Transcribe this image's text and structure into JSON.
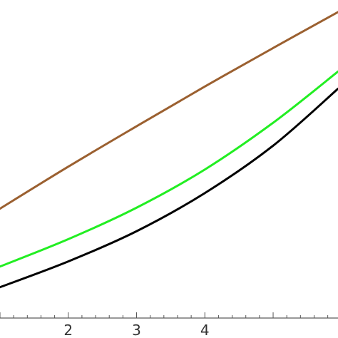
{
  "chart_data": {
    "type": "line",
    "title": "",
    "xlabel": "",
    "ylabel": "",
    "xlim": [
      1.0,
      5.95
    ],
    "ylim": [
      0,
      1
    ],
    "grid": false,
    "x_ticks": [
      2,
      3,
      4
    ],
    "x_tick_labels": [
      "2",
      "3",
      "4"
    ],
    "series": [
      {
        "color": "#9B6030",
        "x": [
          1.0,
          2.0,
          3.0,
          4.0,
          5.0,
          5.95
        ],
        "y": [
          0.344,
          0.476,
          0.603,
          0.728,
          0.849,
          0.962
        ]
      },
      {
        "color": "#22EE22",
        "x": [
          1.0,
          2.0,
          3.0,
          4.0,
          5.0,
          5.95
        ],
        "y": [
          0.162,
          0.248,
          0.347,
          0.467,
          0.614,
          0.775
        ]
      },
      {
        "color": "#000000",
        "x": [
          1.0,
          2.0,
          3.0,
          4.0,
          5.0,
          5.95
        ],
        "y": [
          0.097,
          0.178,
          0.273,
          0.393,
          0.542,
          0.721
        ]
      }
    ]
  }
}
